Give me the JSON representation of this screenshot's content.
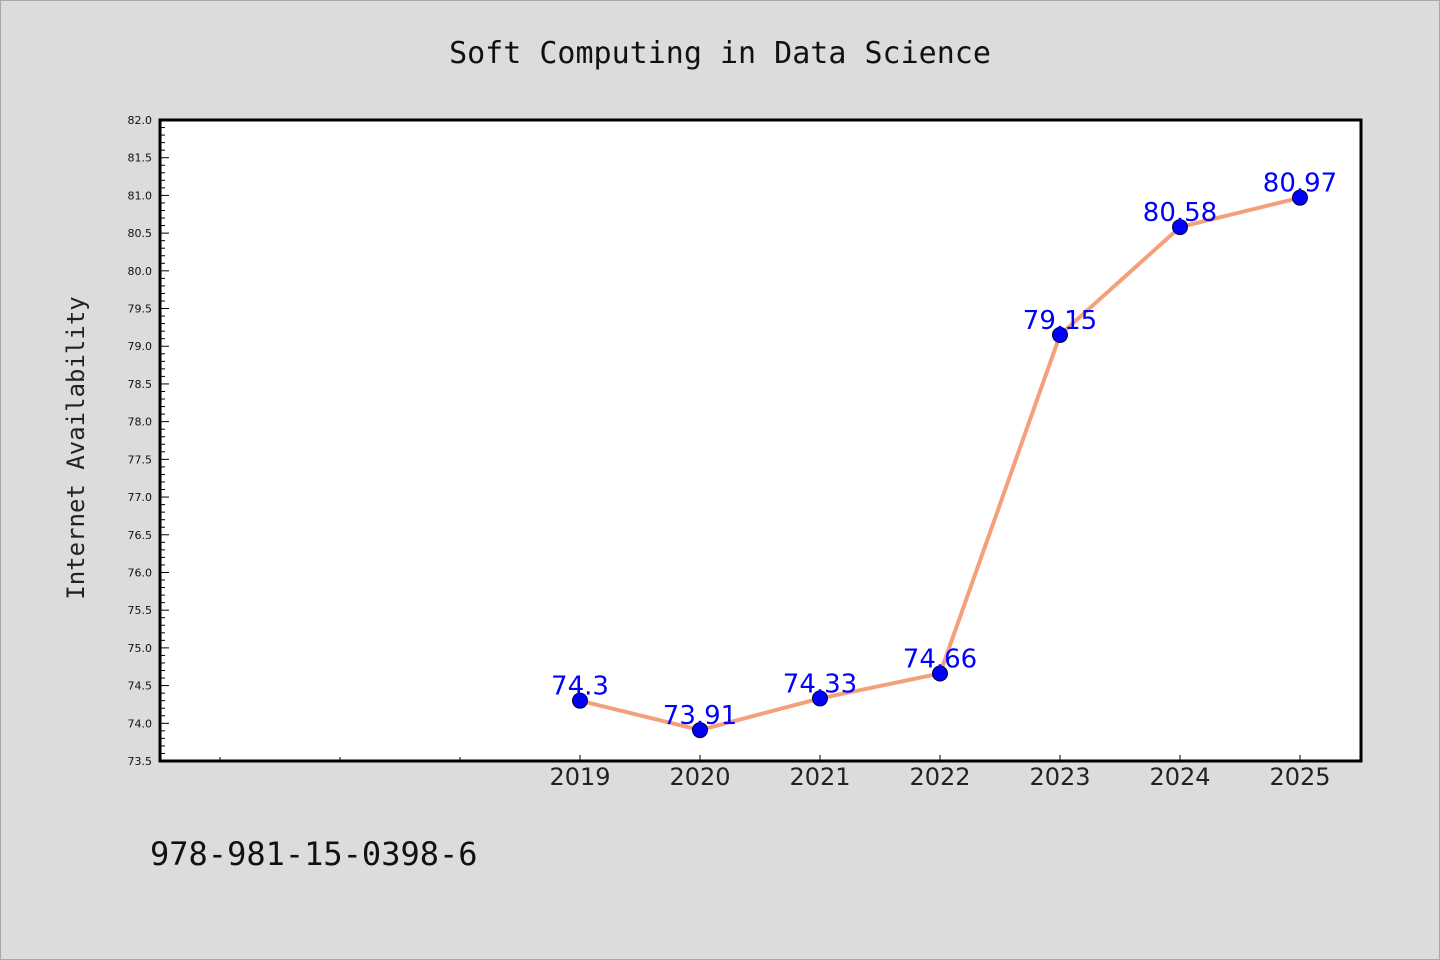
{
  "chart_data": {
    "type": "line",
    "title": "Soft Computing in Data Science",
    "xlabel": "",
    "ylabel": "Internet Availability",
    "categories": [
      "2019",
      "2020",
      "2021",
      "2022",
      "2023",
      "2024",
      "2025"
    ],
    "series": [
      {
        "values": [
          74.3,
          73.91,
          74.33,
          74.66,
          79.15,
          80.58,
          80.97
        ],
        "labels": [
          "74.3",
          "73.91",
          "74.33",
          "74.66",
          "79.15",
          "80.58",
          "80.97"
        ]
      }
    ],
    "ylim": [
      73.5,
      82.0
    ],
    "yticks": [
      "73.5",
      "74.0",
      "74.5",
      "75.0",
      "75.5",
      "76.0",
      "76.5",
      "77.0",
      "77.5",
      "78.0",
      "78.5",
      "79.0",
      "79.5",
      "80.0",
      "80.5",
      "81.0",
      "81.5",
      "82.0"
    ],
    "grid": false,
    "line_color": "#f4a07c",
    "marker_color": "#0000ff",
    "label_color": "#0000ff"
  },
  "footer": {
    "text": "978-981-15-0398-6"
  }
}
